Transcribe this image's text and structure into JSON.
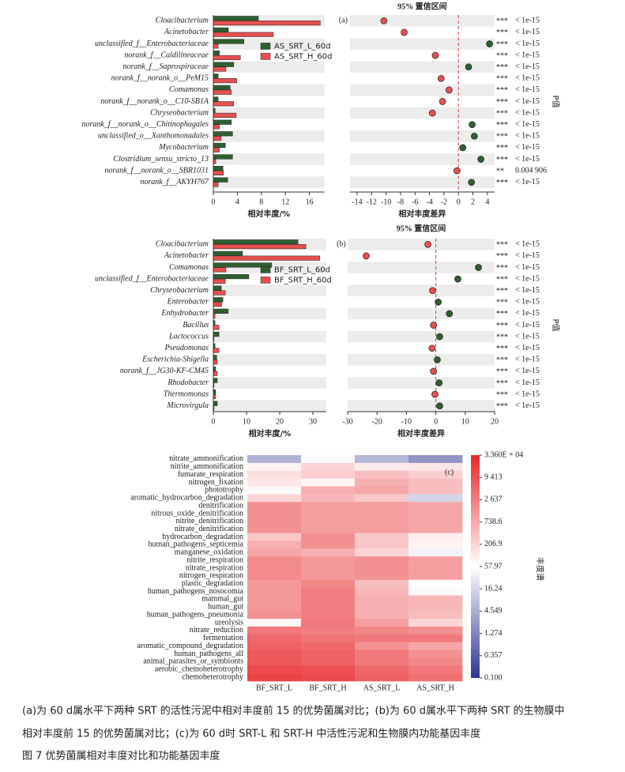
{
  "chart_data": [
    {
      "type": "bar",
      "categories": [
        "Cloacibacterium",
        "Acinetobacter",
        "unclassified_f__Enterobacteriaceae",
        "norank_f__Caldilineaceae",
        "norank_f__Saprospiraceae",
        "norank_f__norank_o__PeM15",
        "Comamonas",
        "norank_f__norank_o__C10-SB1A",
        "Chryseobacterium",
        "norank_f__norank_o__Chitinophagales",
        "unclassified_o__Xanthomonadales",
        "Mycobacterium",
        "Clostridium_sensu_stricto_13",
        "norank_f__norank_o__SBR1031",
        "norank_f__AKYH767"
      ],
      "series": [
        {
          "name": "AS_SRT_L_60d",
          "color": "#2f5e30",
          "values": [
            7.5,
            2.5,
            5.1,
            1.0,
            3.4,
            0.8,
            2.8,
            0.8,
            0.3,
            3.0,
            3.2,
            2.0,
            3.2,
            1.6,
            2.4
          ]
        },
        {
          "name": "AS_SRT_H_60d",
          "color": "#e5504f",
          "values": [
            17.8,
            10.0,
            0.8,
            4.5,
            2.1,
            3.9,
            3.0,
            3.4,
            3.8,
            1.0,
            1.3,
            1.0,
            0.4,
            1.7,
            0.8
          ]
        }
      ],
      "xlim": [
        0,
        18.5
      ],
      "xticks": [
        0,
        4,
        8,
        12,
        16
      ],
      "xlabel": "相对丰度/%",
      "legend": "center right"
    },
    {
      "type": "ci",
      "panel_label": "(a)",
      "title": "95% 置信区间",
      "values": [
        -10.3,
        -7.5,
        4.3,
        -3.2,
        1.4,
        -2.4,
        -1.3,
        -2.2,
        -3.6,
        1.9,
        2.2,
        0.6,
        3.1,
        -0.2,
        1.8
      ],
      "significance": [
        "***",
        "***",
        "***",
        "***",
        "***",
        "***",
        "***",
        "***",
        "***",
        "***",
        "***",
        "***",
        "***",
        "**",
        "***"
      ],
      "p_values": [
        "< 1e-15",
        "< 1e-15",
        "< 1e-15",
        "< 1e-15",
        "< 1e-15",
        "< 1e-15",
        "< 1e-15",
        "< 1e-15",
        "< 1e-15",
        "< 1e-15",
        "< 1e-15",
        "< 1e-15",
        "< 1e-15",
        "0.004 906",
        "< 1e-15"
      ],
      "xlim": [
        -15,
        5
      ],
      "xticks": [
        -14,
        -12,
        -10,
        -8,
        -6,
        -4,
        -2,
        0,
        2,
        4
      ],
      "xlabel": "相对丰度差异",
      "ylabel": "P值",
      "positive_color": "#2f5e30",
      "negative_color": "#e5504f"
    },
    {
      "type": "bar",
      "categories": [
        "Cloacibacterium",
        "Acinetobacter",
        "Comamonas",
        "unclassified_f__Enterobacteriaceae",
        "Chryseobacterium",
        "Enterobacter",
        "Enhydrobacter",
        "Bacillus",
        "Lactococcus",
        "Pseudomonas",
        "Escherichia-Shigella",
        "norank_f__JG30-KF-CM45",
        "Rhodobacter",
        "Thermomonas",
        "Microvirgula"
      ],
      "series": [
        {
          "name": "BF_SRT_L_60d",
          "color": "#2f5e30",
          "values": [
            25.5,
            8.8,
            17.6,
            10.7,
            2.4,
            2.9,
            4.5,
            0.5,
            1.7,
            0.5,
            1.0,
            0.7,
            1.2,
            0.7,
            1.2
          ]
        },
        {
          "name": "BF_SRT_H_60d",
          "color": "#e5504f",
          "values": [
            27.9,
            32.1,
            3.8,
            3.6,
            3.6,
            2.5,
            0.5,
            1.7,
            0.2,
            1.7,
            1.2,
            1.2,
            0.2,
            0.7,
            0.2
          ]
        }
      ],
      "xlim": [
        0,
        34
      ],
      "xticks": [
        0,
        10,
        20,
        30
      ],
      "xlabel": "相对丰度/%",
      "legend": "center right"
    },
    {
      "type": "ci",
      "panel_label": "(b)",
      "title": "95% 置信区间",
      "values": [
        -2.7,
        -23.7,
        14.5,
        7.5,
        -1.1,
        0.8,
        4.6,
        -0.8,
        1.3,
        -1.3,
        0.5,
        -0.8,
        1.1,
        -0.3,
        1.3
      ],
      "significance": [
        "***",
        "***",
        "***",
        "***",
        "***",
        "***",
        "***",
        "***",
        "***",
        "***",
        "***",
        "***",
        "***",
        "***",
        "***"
      ],
      "p_values": [
        "< 1e-15",
        "< 1e-15",
        "< 1e-15",
        "< 1e-15",
        "< 1e-15",
        "< 1e-15",
        "< 1e-15",
        "< 1e-15",
        "< 1e-15",
        "< 1e-15",
        "< 1e-15",
        "< 1e-15",
        "< 1e-15",
        "< 1e-15",
        "< 1e-15"
      ],
      "xlim": [
        -30,
        20
      ],
      "xticks": [
        -30,
        -20,
        -10,
        0,
        10,
        20
      ],
      "xlabel": "相对丰度差异",
      "ylabel": "P值",
      "positive_color": "#2f5e30",
      "negative_color": "#e5504f"
    },
    {
      "type": "heatmap",
      "panel_label": "(c)",
      "columns": [
        "BF_SRT_L",
        "BF_SRT_H",
        "AS_SRT_L",
        "AS_SRT_H"
      ],
      "rows": [
        "nitrate_ammonification",
        "nitrite_ammonification",
        "fumarate_respiration",
        "nitrogen_fixation",
        "phototrophy",
        "aromatic_hydrocarbon_degradation",
        "denitrification",
        "nitrous_oxide_denitrification",
        "nitrite_denitrification",
        "nitrate_denitrification",
        "hydrocarbon_degradation",
        "human_pathogens_septicemia",
        "manganese_oxidation",
        "nitrite_respiration",
        "nitrate_respiration",
        "nitrogen_respiration",
        "plastic_degradation",
        "human_pathogens_nosocomia",
        "mammal_gut",
        "human_gut",
        "human_pathogens_pneumonia",
        "ureolysis",
        "nitrate_reduction",
        "fermentation",
        "aromatic_compound_degradation",
        "human_pathogens_all",
        "animal_parasites_or_symbionts",
        "aerobic_chemoheterotrophy",
        "chemoheterotrophy"
      ],
      "values": [
        [
          5,
          50,
          6,
          2
        ],
        [
          80,
          200,
          100,
          120
        ],
        [
          150,
          250,
          400,
          250
        ],
        [
          120,
          80,
          600,
          400
        ],
        [
          70,
          600,
          800,
          400
        ],
        [
          200,
          500,
          300,
          15
        ],
        [
          1500,
          1000,
          1000,
          800
        ],
        [
          1500,
          1000,
          1000,
          800
        ],
        [
          1500,
          1000,
          1000,
          800
        ],
        [
          1500,
          1000,
          1000,
          800
        ],
        [
          300,
          1500,
          300,
          100
        ],
        [
          600,
          1500,
          300,
          80
        ],
        [
          800,
          600,
          200,
          40
        ],
        [
          1800,
          1200,
          1500,
          1000
        ],
        [
          1800,
          1200,
          1500,
          1000
        ],
        [
          1800,
          1200,
          1500,
          1000
        ],
        [
          1200,
          2000,
          400,
          60
        ],
        [
          1200,
          2500,
          500,
          70
        ],
        [
          1200,
          2500,
          600,
          500
        ],
        [
          1200,
          2500,
          600,
          500
        ],
        [
          1500,
          2500,
          600,
          400
        ],
        [
          80,
          3000,
          1000,
          200
        ],
        [
          3000,
          2500,
          2000,
          1500
        ],
        [
          5000,
          3500,
          3000,
          3000
        ],
        [
          6000,
          5000,
          1500,
          800
        ],
        [
          8000,
          6000,
          3000,
          1500
        ],
        [
          8000,
          6000,
          3000,
          2000
        ],
        [
          12000,
          10000,
          5000,
          3000
        ],
        [
          15000,
          12000,
          6000,
          4000
        ]
      ],
      "colorbar_label": "丰度谱",
      "log_scale": true,
      "clim": [
        0.1,
        33600
      ],
      "cticks": [
        {
          "value": 33600,
          "label": "3.360E + 04"
        },
        {
          "value": 9413,
          "label": "9 413"
        },
        {
          "value": 2637,
          "label": "2 637"
        },
        738.6,
        206.9,
        57.97,
        16.24,
        4.549,
        1.274,
        0.357,
        {
          "value": 0.1,
          "label": "0.100"
        }
      ],
      "colors": [
        "#2f3590",
        "#ffffff",
        "#e8272a"
      ]
    }
  ],
  "caption": {
    "lines": [
      "(a)为 60 d属水平下两种 SRT 的活性污泥中相对丰度前 15 的优势菌属对比；(b)为 60 d属水平下两种 SRT 的生物膜中",
      "相对丰度前 15 的优势菌属对比；(c)为 60 d时 SRT-L 和 SRT-H 中活性污泥和生物膜内功能基因丰度"
    ],
    "figure_title": "图 7   优势菌属相对丰度对比和功能基因丰度"
  }
}
